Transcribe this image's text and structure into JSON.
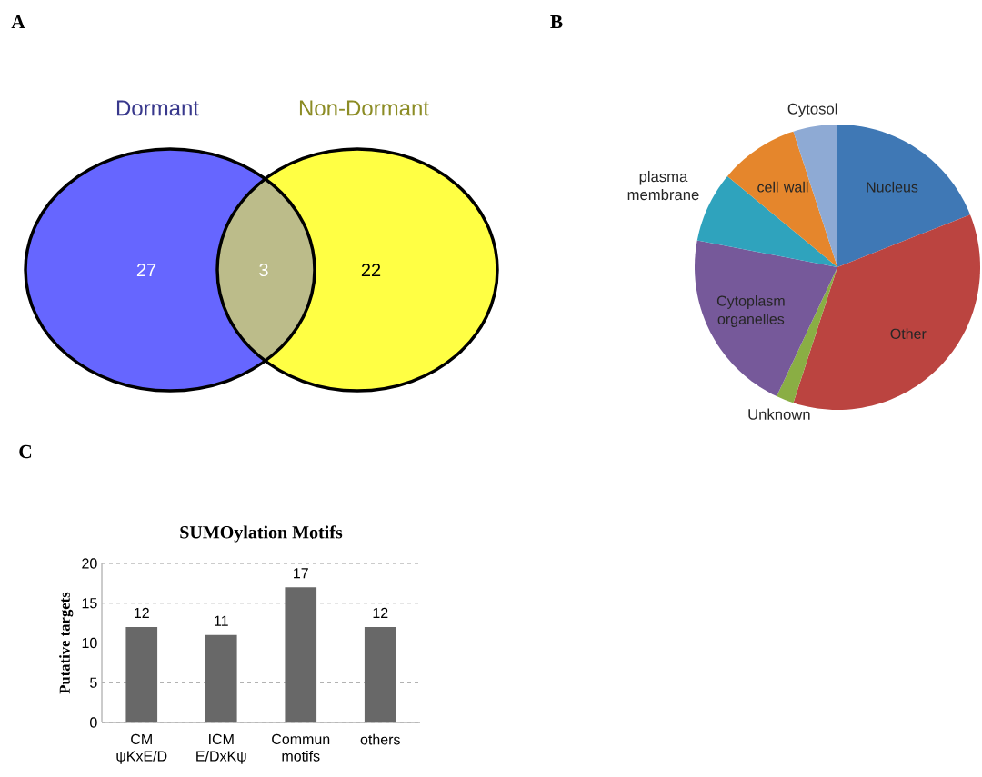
{
  "chart_data": [
    {
      "type": "other",
      "categories": [
        "Dormant",
        null,
        "Non-Dormant"
      ],
      "values": [
        27,
        3,
        22
      ],
      "colors": [
        "#6666ff",
        "#bcbc8a",
        "#ffff44"
      ],
      "data_labels": true,
      "annotations": [
        "A"
      ]
    },
    {
      "type": "pie",
      "categories": [
        "Nucleus",
        "Other",
        "Unknown",
        "Cytoplasm organelles",
        "plasma membrane",
        "cell wall",
        "Cytosol"
      ],
      "values": [
        19,
        36,
        2,
        21,
        8,
        9,
        5
      ],
      "colors": [
        "#3f78b5",
        "#bb4440",
        "#8aae44",
        "#76599a",
        "#2fa3bd",
        "#e5862c",
        "#8eaad4"
      ],
      "annotations": [
        "B"
      ]
    },
    {
      "type": "bar",
      "title": "SUMOylation Motifs",
      "ylabel": "Putative targets",
      "categories": [
        "CM ψKxE/D",
        "ICM E/DxKψ",
        "Commun motifs",
        "others"
      ],
      "values": [
        12,
        11,
        17,
        12
      ],
      "color": "#686868",
      "ylim": [
        0,
        20
      ],
      "yticks": [
        0,
        5,
        10,
        15,
        20
      ],
      "grid": "y",
      "data_labels": true,
      "annotations": [
        "C"
      ]
    }
  ]
}
